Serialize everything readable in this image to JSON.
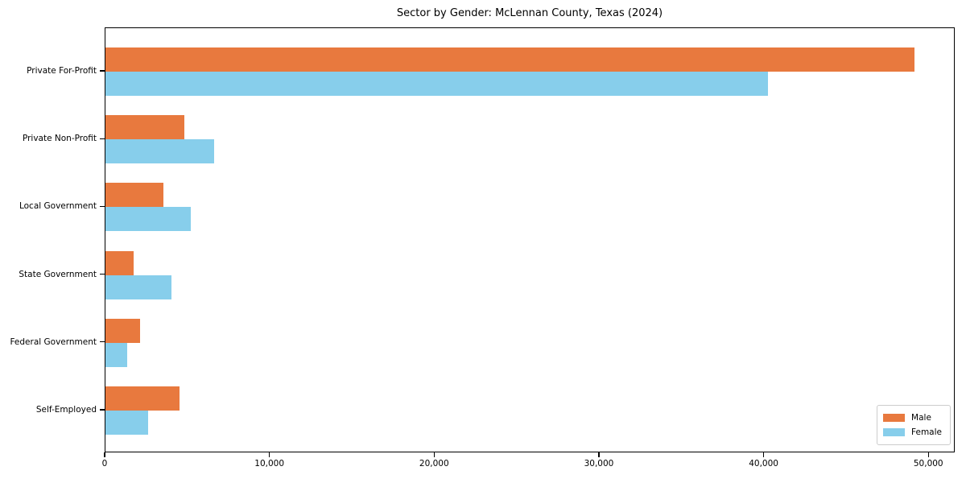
{
  "chart_data": {
    "type": "bar",
    "orientation": "horizontal",
    "title": "Sector by Gender: McLennan County, Texas (2024)",
    "categories": [
      "Private For-Profit",
      "Private Non-Profit",
      "Local Government",
      "State Government",
      "Federal Government",
      "Self-Employed"
    ],
    "series": [
      {
        "name": "Male",
        "color": "#e8793e",
        "values": [
          49100,
          4800,
          3500,
          1700,
          2100,
          4500
        ]
      },
      {
        "name": "Female",
        "color": "#87ceeb",
        "values": [
          40200,
          6600,
          5200,
          4000,
          1300,
          2600
        ]
      }
    ],
    "xlim": [
      0,
      51600
    ],
    "xticks": [
      0,
      10000,
      20000,
      30000,
      40000,
      50000
    ],
    "xtick_labels": [
      "0",
      "10,000",
      "20,000",
      "30,000",
      "40,000",
      "50,000"
    ],
    "xlabel": "",
    "ylabel": "",
    "grid": false,
    "legend_position": "lower right"
  }
}
